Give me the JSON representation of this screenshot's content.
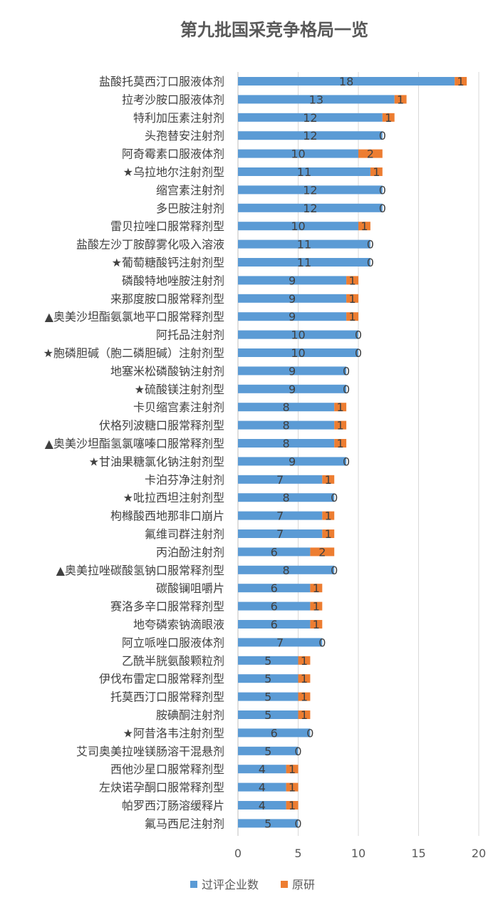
{
  "chart_data": {
    "type": "bar",
    "orientation": "horizontal",
    "stacked": true,
    "title": "第九批国采竞争格局一览",
    "xlim": [
      0,
      20
    ],
    "xticks": [
      0,
      5,
      10,
      15,
      20
    ],
    "grid": true,
    "legend_position": "bottom",
    "categories": [
      "盐酸托莫西汀口服液体剂",
      "拉考沙胺口服液体剂",
      "特利加压素注射剂",
      "头孢替安注射剂",
      "阿奇霉素口服液体剂",
      "★乌拉地尔注射剂型",
      "缩宫素注射剂",
      "多巴胺注射剂",
      "雷贝拉唑口服常释剂型",
      "盐酸左沙丁胺醇雾化吸入溶液",
      "★葡萄糖酸钙注射剂型",
      "磷酸特地唑胺注射剂",
      "来那度胺口服常释剂型",
      "▲奥美沙坦酯氨氯地平口服常释剂型",
      "阿托品注射剂",
      "★胞磷胆碱（胞二磷胆碱）注射剂型",
      "地塞米松磷酸钠注射剂",
      "★硫酸镁注射剂型",
      "卡贝缩宫素注射剂",
      "伏格列波糖口服常释剂型",
      "▲奥美沙坦酯氢氯噻嗪口服常释剂型",
      "★甘油果糖氯化钠注射剂型",
      "卡泊芬净注射剂",
      "★吡拉西坦注射剂型",
      "枸橼酸西地那非口崩片",
      "氟维司群注射剂",
      "丙泊酚注射剂",
      "▲奥美拉唑碳酸氢钠口服常释剂型",
      "碳酸镧咀嚼片",
      "赛洛多辛口服常释剂型",
      "地夸磷索钠滴眼液",
      "阿立哌唑口服液体剂",
      "乙酰半胱氨酸颗粒剂",
      "伊伐布雷定口服常释剂型",
      "托莫西汀口服常释剂型",
      "胺碘酮注射剂",
      "★阿昔洛韦注射剂型",
      "艾司奥美拉唑镁肠溶干混悬剂",
      "西他沙星口服常释剂型",
      "左炔诺孕酮口服常释剂型",
      "帕罗西汀肠溶缓释片",
      "氟马西尼注射剂"
    ],
    "series": [
      {
        "name": "过评企业数",
        "color": "#5B9BD5",
        "values": [
          18,
          13,
          12,
          12,
          10,
          11,
          12,
          12,
          10,
          11,
          11,
          9,
          9,
          9,
          10,
          10,
          9,
          9,
          8,
          8,
          8,
          9,
          7,
          8,
          7,
          7,
          6,
          8,
          6,
          6,
          6,
          7,
          5,
          5,
          5,
          5,
          6,
          5,
          4,
          4,
          4,
          5
        ]
      },
      {
        "name": "原研",
        "color": "#ED7D31",
        "values": [
          1,
          1,
          1,
          0,
          2,
          1,
          0,
          0,
          1,
          0,
          0,
          1,
          1,
          1,
          0,
          0,
          0,
          0,
          1,
          1,
          1,
          0,
          1,
          0,
          1,
          1,
          2,
          0,
          1,
          1,
          1,
          0,
          1,
          1,
          1,
          1,
          0,
          0,
          1,
          1,
          1,
          0
        ]
      }
    ]
  }
}
